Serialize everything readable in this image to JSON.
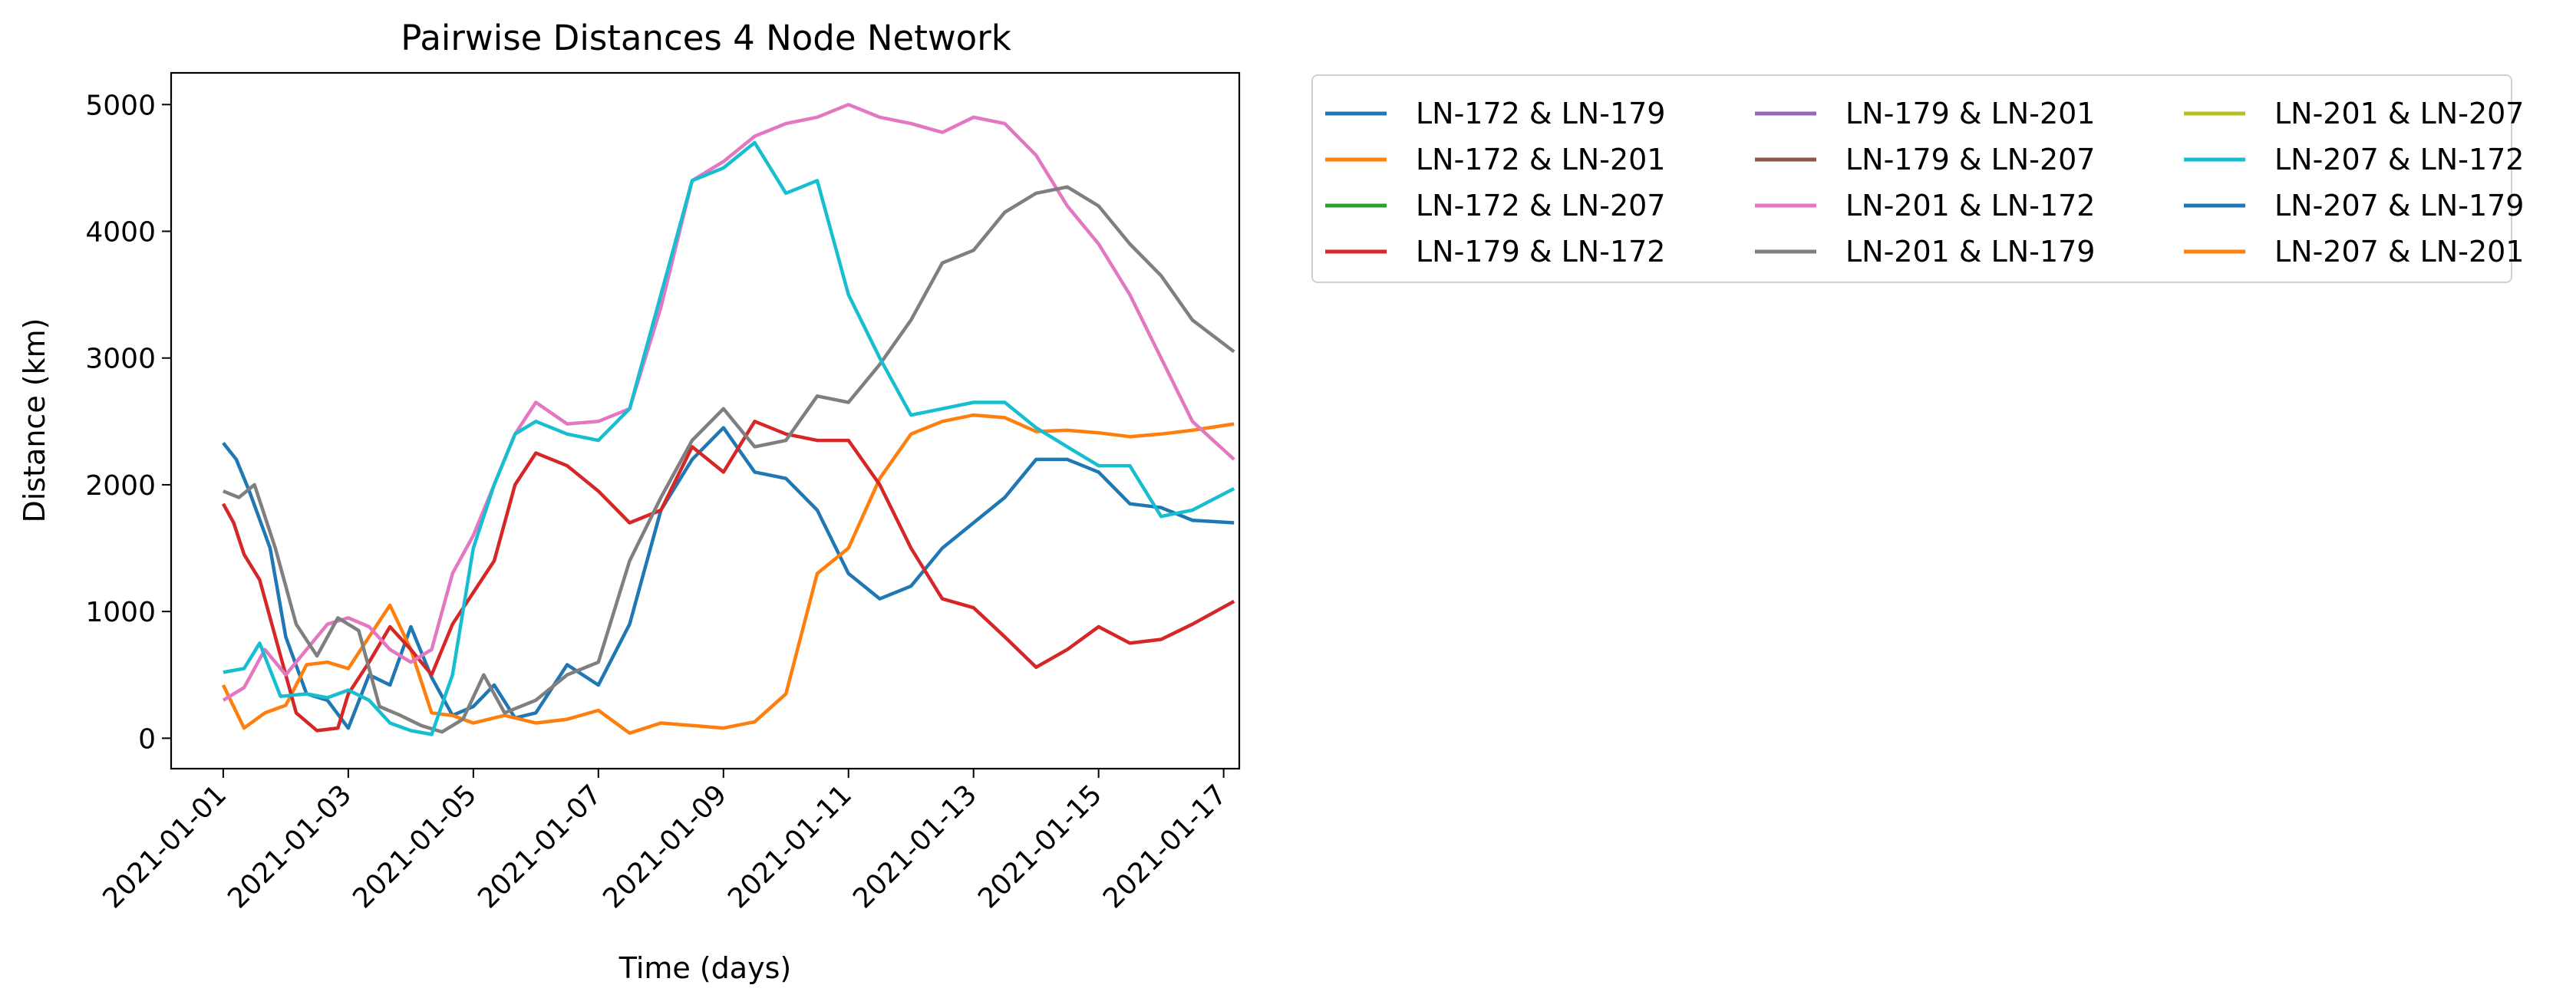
{
  "chart_data": {
    "type": "line",
    "title": "Pairwise Distances 4 Node Network",
    "xlabel": "Time (days)",
    "ylabel": "Distance (km)",
    "x_type": "date",
    "xlim": [
      "2020-12-31T04:00",
      "2021-01-17T06:00"
    ],
    "ylim": [
      -240,
      5250
    ],
    "x_ticks": [
      "2021-01-01",
      "2021-01-03",
      "2021-01-05",
      "2021-01-07",
      "2021-01-09",
      "2021-01-11",
      "2021-01-13",
      "2021-01-15",
      "2021-01-17"
    ],
    "y_ticks": [
      0,
      1000,
      2000,
      3000,
      4000,
      5000
    ],
    "grid": false,
    "legend": {
      "placement": "outside-top-right",
      "columns": 3
    },
    "series": [
      {
        "name": "LN-172 & LN-179",
        "color": "#1f77b4",
        "points": [
          [
            "2021-01-01T00:00",
            2330
          ],
          [
            "2021-01-01T05:00",
            2200
          ],
          [
            "2021-01-01T10:00",
            1950
          ],
          [
            "2021-01-01T18:00",
            1500
          ],
          [
            "2021-01-02T00:00",
            800
          ],
          [
            "2021-01-02T08:00",
            350
          ],
          [
            "2021-01-02T16:00",
            300
          ],
          [
            "2021-01-03T00:00",
            80
          ],
          [
            "2021-01-03T08:00",
            500
          ],
          [
            "2021-01-03T16:00",
            420
          ],
          [
            "2021-01-04T00:00",
            880
          ],
          [
            "2021-01-04T08:00",
            480
          ],
          [
            "2021-01-04T16:00",
            180
          ],
          [
            "2021-01-05T00:00",
            250
          ],
          [
            "2021-01-05T08:00",
            420
          ],
          [
            "2021-01-05T16:00",
            160
          ],
          [
            "2021-01-06T00:00",
            200
          ],
          [
            "2021-01-06T12:00",
            580
          ],
          [
            "2021-01-07T00:00",
            420
          ],
          [
            "2021-01-07T12:00",
            900
          ],
          [
            "2021-01-08T00:00",
            1800
          ],
          [
            "2021-01-08T12:00",
            2200
          ],
          [
            "2021-01-09T00:00",
            2450
          ],
          [
            "2021-01-09T12:00",
            2100
          ],
          [
            "2021-01-10T00:00",
            2050
          ],
          [
            "2021-01-10T12:00",
            1800
          ],
          [
            "2021-01-11T00:00",
            1300
          ],
          [
            "2021-01-11T12:00",
            1100
          ],
          [
            "2021-01-12T00:00",
            1200
          ],
          [
            "2021-01-12T12:00",
            1500
          ],
          [
            "2021-01-13T00:00",
            1700
          ],
          [
            "2021-01-13T12:00",
            1900
          ],
          [
            "2021-01-14T00:00",
            2200
          ],
          [
            "2021-01-14T12:00",
            2200
          ],
          [
            "2021-01-15T00:00",
            2100
          ],
          [
            "2021-01-15T12:00",
            1850
          ],
          [
            "2021-01-16T00:00",
            1820
          ],
          [
            "2021-01-16T12:00",
            1720
          ],
          [
            "2021-01-17T04:00",
            1700
          ]
        ]
      },
      {
        "name": "LN-172 & LN-201",
        "color": "#ff7f0e",
        "points": [
          [
            "2021-01-01T00:00",
            420
          ],
          [
            "2021-01-01T08:00",
            80
          ],
          [
            "2021-01-01T16:00",
            200
          ],
          [
            "2021-01-02T00:00",
            260
          ],
          [
            "2021-01-02T08:00",
            580
          ],
          [
            "2021-01-02T16:00",
            600
          ],
          [
            "2021-01-03T00:00",
            550
          ],
          [
            "2021-01-03T08:00",
            800
          ],
          [
            "2021-01-03T16:00",
            1050
          ],
          [
            "2021-01-04T00:00",
            700
          ],
          [
            "2021-01-04T08:00",
            200
          ],
          [
            "2021-01-04T16:00",
            180
          ],
          [
            "2021-01-05T00:00",
            120
          ],
          [
            "2021-01-05T12:00",
            180
          ],
          [
            "2021-01-06T00:00",
            120
          ],
          [
            "2021-01-06T12:00",
            150
          ],
          [
            "2021-01-07T00:00",
            220
          ],
          [
            "2021-01-07T12:00",
            40
          ],
          [
            "2021-01-08T00:00",
            120
          ],
          [
            "2021-01-08T12:00",
            100
          ],
          [
            "2021-01-09T00:00",
            80
          ],
          [
            "2021-01-09T12:00",
            130
          ],
          [
            "2021-01-10T00:00",
            350
          ],
          [
            "2021-01-10T12:00",
            1300
          ],
          [
            "2021-01-11T00:00",
            1500
          ],
          [
            "2021-01-11T12:00",
            2050
          ],
          [
            "2021-01-12T00:00",
            2400
          ],
          [
            "2021-01-12T12:00",
            2500
          ],
          [
            "2021-01-13T00:00",
            2550
          ],
          [
            "2021-01-13T12:00",
            2530
          ],
          [
            "2021-01-14T00:00",
            2420
          ],
          [
            "2021-01-14T12:00",
            2430
          ],
          [
            "2021-01-15T00:00",
            2410
          ],
          [
            "2021-01-15T12:00",
            2380
          ],
          [
            "2021-01-16T00:00",
            2400
          ],
          [
            "2021-01-16T12:00",
            2430
          ],
          [
            "2021-01-17T04:00",
            2480
          ]
        ]
      },
      {
        "name": "LN-172 & LN-207",
        "color": "#2ca02c",
        "points": []
      },
      {
        "name": "LN-179 & LN-172",
        "color": "#d62728",
        "points": [
          [
            "2021-01-01T00:00",
            1850
          ],
          [
            "2021-01-01T04:00",
            1700
          ],
          [
            "2021-01-01T08:00",
            1450
          ],
          [
            "2021-01-01T14:00",
            1250
          ],
          [
            "2021-01-01T20:00",
            800
          ],
          [
            "2021-01-02T04:00",
            200
          ],
          [
            "2021-01-02T12:00",
            60
          ],
          [
            "2021-01-02T20:00",
            80
          ],
          [
            "2021-01-03T00:00",
            350
          ],
          [
            "2021-01-03T08:00",
            600
          ],
          [
            "2021-01-03T16:00",
            880
          ],
          [
            "2021-01-04T00:00",
            700
          ],
          [
            "2021-01-04T08:00",
            500
          ],
          [
            "2021-01-04T16:00",
            900
          ],
          [
            "2021-01-05T00:00",
            1150
          ],
          [
            "2021-01-05T08:00",
            1400
          ],
          [
            "2021-01-05T16:00",
            2000
          ],
          [
            "2021-01-06T00:00",
            2250
          ],
          [
            "2021-01-06T12:00",
            2150
          ],
          [
            "2021-01-07T00:00",
            1950
          ],
          [
            "2021-01-07T12:00",
            1700
          ],
          [
            "2021-01-08T00:00",
            1800
          ],
          [
            "2021-01-08T12:00",
            2300
          ],
          [
            "2021-01-09T00:00",
            2100
          ],
          [
            "2021-01-09T12:00",
            2500
          ],
          [
            "2021-01-10T00:00",
            2400
          ],
          [
            "2021-01-10T12:00",
            2350
          ],
          [
            "2021-01-11T00:00",
            2350
          ],
          [
            "2021-01-11T12:00",
            2000
          ],
          [
            "2021-01-12T00:00",
            1500
          ],
          [
            "2021-01-12T12:00",
            1100
          ],
          [
            "2021-01-13T00:00",
            1030
          ],
          [
            "2021-01-13T12:00",
            800
          ],
          [
            "2021-01-14T00:00",
            560
          ],
          [
            "2021-01-14T12:00",
            700
          ],
          [
            "2021-01-15T00:00",
            880
          ],
          [
            "2021-01-15T12:00",
            750
          ],
          [
            "2021-01-16T00:00",
            780
          ],
          [
            "2021-01-16T12:00",
            900
          ],
          [
            "2021-01-17T04:00",
            1080
          ]
        ]
      },
      {
        "name": "LN-179 & LN-201",
        "color": "#9467bd",
        "points": []
      },
      {
        "name": "LN-179 & LN-207",
        "color": "#8c564b",
        "points": []
      },
      {
        "name": "LN-201 & LN-172",
        "color": "#e377c2",
        "points": [
          [
            "2021-01-01T00:00",
            300
          ],
          [
            "2021-01-01T08:00",
            400
          ],
          [
            "2021-01-01T16:00",
            700
          ],
          [
            "2021-01-02T00:00",
            500
          ],
          [
            "2021-01-02T08:00",
            700
          ],
          [
            "2021-01-02T16:00",
            900
          ],
          [
            "2021-01-03T00:00",
            950
          ],
          [
            "2021-01-03T08:00",
            880
          ],
          [
            "2021-01-03T16:00",
            700
          ],
          [
            "2021-01-04T00:00",
            600
          ],
          [
            "2021-01-04T08:00",
            700
          ],
          [
            "2021-01-04T16:00",
            1300
          ],
          [
            "2021-01-05T00:00",
            1600
          ],
          [
            "2021-01-05T08:00",
            2000
          ],
          [
            "2021-01-05T16:00",
            2400
          ],
          [
            "2021-01-06T00:00",
            2650
          ],
          [
            "2021-01-06T12:00",
            2480
          ],
          [
            "2021-01-07T00:00",
            2500
          ],
          [
            "2021-01-07T12:00",
            2600
          ],
          [
            "2021-01-08T00:00",
            3400
          ],
          [
            "2021-01-08T12:00",
            4400
          ],
          [
            "2021-01-09T00:00",
            4550
          ],
          [
            "2021-01-09T12:00",
            4750
          ],
          [
            "2021-01-10T00:00",
            4850
          ],
          [
            "2021-01-10T12:00",
            4900
          ],
          [
            "2021-01-11T00:00",
            5000
          ],
          [
            "2021-01-11T12:00",
            4900
          ],
          [
            "2021-01-12T00:00",
            4850
          ],
          [
            "2021-01-12T12:00",
            4780
          ],
          [
            "2021-01-13T00:00",
            4900
          ],
          [
            "2021-01-13T12:00",
            4850
          ],
          [
            "2021-01-14T00:00",
            4600
          ],
          [
            "2021-01-14T12:00",
            4200
          ],
          [
            "2021-01-15T00:00",
            3900
          ],
          [
            "2021-01-15T12:00",
            3500
          ],
          [
            "2021-01-16T00:00",
            3000
          ],
          [
            "2021-01-16T12:00",
            2500
          ],
          [
            "2021-01-17T04:00",
            2200
          ]
        ]
      },
      {
        "name": "LN-201 & LN-179",
        "color": "#7f7f7f",
        "points": [
          [
            "2021-01-01T00:00",
            1950
          ],
          [
            "2021-01-01T06:00",
            1900
          ],
          [
            "2021-01-01T12:00",
            2000
          ],
          [
            "2021-01-01T20:00",
            1500
          ],
          [
            "2021-01-02T04:00",
            900
          ],
          [
            "2021-01-02T12:00",
            650
          ],
          [
            "2021-01-02T20:00",
            950
          ],
          [
            "2021-01-03T04:00",
            850
          ],
          [
            "2021-01-03T12:00",
            250
          ],
          [
            "2021-01-03T20:00",
            180
          ],
          [
            "2021-01-04T04:00",
            100
          ],
          [
            "2021-01-04T12:00",
            50
          ],
          [
            "2021-01-04T20:00",
            150
          ],
          [
            "2021-01-05T04:00",
            500
          ],
          [
            "2021-01-05T12:00",
            200
          ],
          [
            "2021-01-06T00:00",
            300
          ],
          [
            "2021-01-06T12:00",
            500
          ],
          [
            "2021-01-07T00:00",
            600
          ],
          [
            "2021-01-07T12:00",
            1400
          ],
          [
            "2021-01-08T00:00",
            1900
          ],
          [
            "2021-01-08T12:00",
            2350
          ],
          [
            "2021-01-09T00:00",
            2600
          ],
          [
            "2021-01-09T12:00",
            2300
          ],
          [
            "2021-01-10T00:00",
            2350
          ],
          [
            "2021-01-10T12:00",
            2700
          ],
          [
            "2021-01-11T00:00",
            2650
          ],
          [
            "2021-01-11T12:00",
            2950
          ],
          [
            "2021-01-12T00:00",
            3300
          ],
          [
            "2021-01-12T12:00",
            3750
          ],
          [
            "2021-01-13T00:00",
            3850
          ],
          [
            "2021-01-13T12:00",
            4150
          ],
          [
            "2021-01-14T00:00",
            4300
          ],
          [
            "2021-01-14T12:00",
            4350
          ],
          [
            "2021-01-15T00:00",
            4200
          ],
          [
            "2021-01-15T12:00",
            3900
          ],
          [
            "2021-01-16T00:00",
            3650
          ],
          [
            "2021-01-16T12:00",
            3300
          ],
          [
            "2021-01-17T04:00",
            3050
          ]
        ]
      },
      {
        "name": "LN-201 & LN-207",
        "color": "#bcbd22",
        "points": []
      },
      {
        "name": "LN-207 & LN-172",
        "color": "#17becf",
        "points": [
          [
            "2021-01-01T00:00",
            520
          ],
          [
            "2021-01-01T08:00",
            550
          ],
          [
            "2021-01-01T14:00",
            750
          ],
          [
            "2021-01-01T22:00",
            330
          ],
          [
            "2021-01-02T08:00",
            350
          ],
          [
            "2021-01-02T16:00",
            320
          ],
          [
            "2021-01-03T00:00",
            380
          ],
          [
            "2021-01-03T08:00",
            300
          ],
          [
            "2021-01-03T16:00",
            120
          ],
          [
            "2021-01-04T00:00",
            60
          ],
          [
            "2021-01-04T08:00",
            30
          ],
          [
            "2021-01-04T16:00",
            500
          ],
          [
            "2021-01-05T00:00",
            1500
          ],
          [
            "2021-01-05T08:00",
            2000
          ],
          [
            "2021-01-05T16:00",
            2400
          ],
          [
            "2021-01-06T00:00",
            2500
          ],
          [
            "2021-01-06T12:00",
            2400
          ],
          [
            "2021-01-07T00:00",
            2350
          ],
          [
            "2021-01-07T12:00",
            2600
          ],
          [
            "2021-01-08T00:00",
            3500
          ],
          [
            "2021-01-08T12:00",
            4400
          ],
          [
            "2021-01-09T00:00",
            4500
          ],
          [
            "2021-01-09T12:00",
            4700
          ],
          [
            "2021-01-10T00:00",
            4300
          ],
          [
            "2021-01-10T12:00",
            4400
          ],
          [
            "2021-01-11T00:00",
            3500
          ],
          [
            "2021-01-11T12:00",
            3000
          ],
          [
            "2021-01-12T00:00",
            2550
          ],
          [
            "2021-01-12T12:00",
            2600
          ],
          [
            "2021-01-13T00:00",
            2650
          ],
          [
            "2021-01-13T12:00",
            2650
          ],
          [
            "2021-01-14T00:00",
            2450
          ],
          [
            "2021-01-14T12:00",
            2300
          ],
          [
            "2021-01-15T00:00",
            2150
          ],
          [
            "2021-01-15T12:00",
            2150
          ],
          [
            "2021-01-16T00:00",
            1750
          ],
          [
            "2021-01-16T12:00",
            1800
          ],
          [
            "2021-01-17T04:00",
            1970
          ]
        ]
      },
      {
        "name": "LN-207 & LN-179",
        "color": "#1f77b4",
        "points": []
      },
      {
        "name": "LN-207 & LN-201",
        "color": "#ff7f0e",
        "points": []
      }
    ]
  }
}
